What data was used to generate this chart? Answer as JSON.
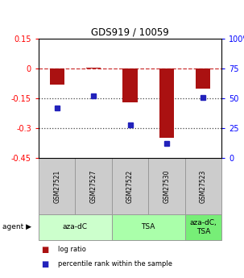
{
  "title": "GDS919 / 10059",
  "samples": [
    "GSM27521",
    "GSM27527",
    "GSM27522",
    "GSM27530",
    "GSM27523"
  ],
  "log_ratios": [
    -0.08,
    0.005,
    -0.17,
    -0.35,
    -0.1
  ],
  "percentile_ranks": [
    42,
    52,
    28,
    12,
    51
  ],
  "ylim_left": [
    -0.45,
    0.15
  ],
  "ylim_right": [
    0,
    100
  ],
  "yticks_left": [
    0.15,
    0,
    -0.15,
    -0.3,
    -0.45
  ],
  "yticks_right": [
    100,
    75,
    50,
    25,
    0
  ],
  "bar_color": "#aa1111",
  "dot_color": "#2222bb",
  "dashed_color": "#cc3333",
  "dotted_color": "#444444",
  "agent_groups": [
    {
      "label": "aza-dC",
      "span": [
        0,
        2
      ],
      "color": "#ccffcc"
    },
    {
      "label": "TSA",
      "span": [
        2,
        4
      ],
      "color": "#aaffaa"
    },
    {
      "label": "aza-dC,\nTSA",
      "span": [
        4,
        5
      ],
      "color": "#77ee77"
    }
  ],
  "legend_items": [
    {
      "color": "#aa1111",
      "label": "log ratio"
    },
    {
      "color": "#2222bb",
      "label": "percentile rank within the sample"
    }
  ],
  "sample_box_color": "#cccccc",
  "sample_box_edge": "#999999"
}
